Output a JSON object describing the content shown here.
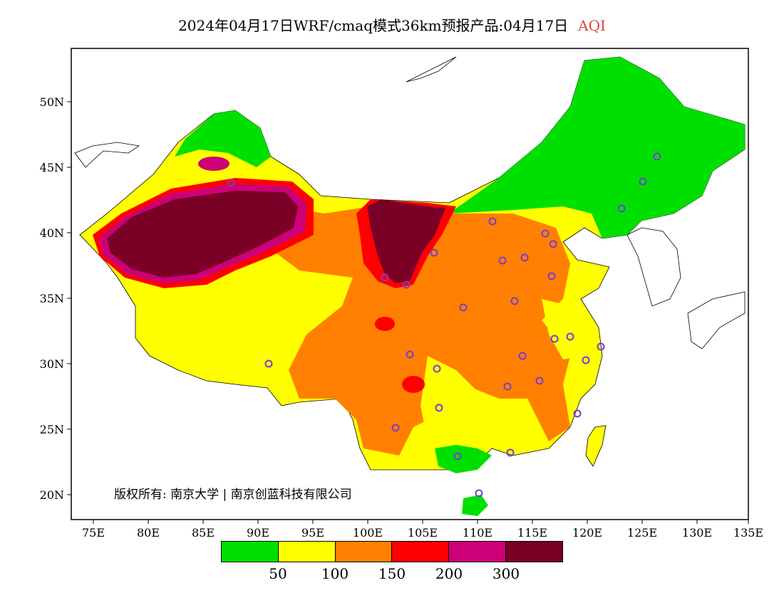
{
  "title": {
    "text": "2024年04月17日WRF/cmaq模式36km预报产品:04月17日",
    "product": "AQI"
  },
  "axes": {
    "lat_labels": [
      "50N",
      "45N",
      "40N",
      "35N",
      "30N",
      "25N",
      "20N"
    ],
    "lon_labels": [
      "75E",
      "80E",
      "85E",
      "90E",
      "95E",
      "100E",
      "105E",
      "110E",
      "115E",
      "120E",
      "125E",
      "130E",
      "135E"
    ]
  },
  "legend": {
    "colors": [
      "#00e000",
      "#ffff00",
      "#ff8000",
      "#ff0000",
      "#cc0077",
      "#7a0026"
    ],
    "labels": [
      "50",
      "100",
      "150",
      "200",
      "300"
    ]
  },
  "copyright": "版权所有: 南京大学 | 南京创蓝科技有限公司"
}
